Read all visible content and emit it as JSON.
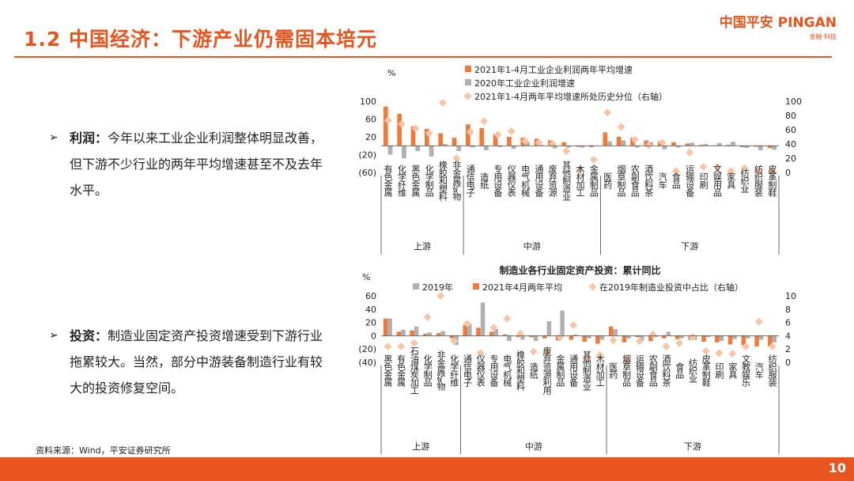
{
  "header": {
    "title": "1.2 中国经济：下游产业仍需固本培元",
    "logo_text": "中国平安 PINGAN",
    "logo_sub": "金融·科技"
  },
  "bullets": [
    {
      "mark": "➢",
      "head": "利润：",
      "text": "今年以来工业企业利润整体明显改善，但下游不少行业的两年平均增速甚至不及去年水平。"
    },
    {
      "mark": "➢",
      "head": "投资：",
      "text": "制造业固定资产投资增速受到下游行业拖累较大。当然，部分中游装备制造行业有较大的投资修复空间。"
    }
  ],
  "source": "资料来源：Wind，平安证券研究所",
  "page_number": "10",
  "colors": {
    "accent": "#e8541e",
    "orange_bar": "#f07a3a",
    "gray_bar": "#b0b0b0",
    "diamond": "#f8c4a4"
  },
  "chart_data": [
    {
      "type": "bar",
      "title": "",
      "left_unit": "%",
      "yticks_left": [
        "100",
        "60",
        "20",
        "(20)",
        "(60)"
      ],
      "yticks_right": [
        "100",
        "80",
        "60",
        "40",
        "20",
        "0"
      ],
      "ylim_left": [
        -60,
        100
      ],
      "ylim_right": [
        0,
        100
      ],
      "legend": [
        {
          "name": "2021年1-4月工业企业利润两年平均增速",
          "marker": "bar-orange"
        },
        {
          "name": "2020年工业企业利润增速",
          "marker": "bar-gray"
        },
        {
          "name": "2021年1-4月两年平均增速所处历史分位（右轴）",
          "marker": "diamond"
        }
      ],
      "categories": [
        "有色金属",
        "化学纤维",
        "黑色金属",
        "化学制品",
        "橡胶和塑料",
        "非金属矿物",
        "通信电子",
        "造纸",
        "专用设备",
        "仪器仪表",
        "电气机械",
        "通用设备",
        "废弃资源",
        "其他制造业",
        "木材加工",
        "金属制品",
        "医药",
        "烟草制品",
        "农副食品",
        "酒饮料茶",
        "汽车",
        "食品",
        "运输设备",
        "印刷",
        "文娱用品",
        "家具",
        "纺织业",
        "纺织服装",
        "皮革制鞋"
      ],
      "groups": [
        {
          "name": "上游",
          "start": 0,
          "end": 5
        },
        {
          "name": "中游",
          "start": 6,
          "end": 15
        },
        {
          "name": "下游",
          "start": 16,
          "end": 28
        }
      ],
      "series": [
        {
          "name": "2021年1-4月工业企业利润两年平均增速",
          "axis": "left",
          "values": [
            88,
            72,
            44,
            38,
            28,
            18,
            48,
            40,
            26,
            20,
            18,
            16,
            12,
            8,
            -2,
            -3,
            30,
            20,
            18,
            12,
            10,
            8,
            5,
            2,
            1,
            2,
            -3,
            -2,
            -5
          ]
        },
        {
          "name": "2020年工业企业利润增速",
          "axis": "left",
          "values": [
            -20,
            -28,
            -12,
            -24,
            4,
            -12,
            -4,
            -10,
            -3,
            -7,
            8,
            2,
            -6,
            -4,
            -4,
            0,
            10,
            12,
            -4,
            8,
            -8,
            -4,
            7,
            4,
            6,
            9,
            -5,
            -10,
            -9
          ]
        },
        {
          "name": "2021年1-4月两年平均增速所处历史分位（右轴）",
          "axis": "right",
          "values": [
            73,
            68,
            62,
            55,
            98,
            20,
            57,
            72,
            53,
            58,
            44,
            42,
            40,
            30,
            4,
            18,
            84,
            64,
            46,
            38,
            42,
            2,
            28,
            8,
            8,
            2,
            6,
            2,
            2
          ]
        }
      ]
    },
    {
      "type": "bar",
      "title": "制造业各行业固定资产投资：累计同比",
      "left_unit": "%",
      "yticks_left": [
        "60",
        "40",
        "20",
        "0",
        "(20)",
        "(40)"
      ],
      "yticks_right": [
        "10",
        "8",
        "6",
        "4",
        "2",
        "0"
      ],
      "ylim_left": [
        -40,
        60
      ],
      "ylim_right": [
        0,
        10
      ],
      "legend": [
        {
          "name": "2019年",
          "marker": "bar-gray"
        },
        {
          "name": "2021年4月两年平均",
          "marker": "bar-orange"
        },
        {
          "name": "在2019年制造业投资中占比（右轴）",
          "marker": "diamond"
        }
      ],
      "categories": [
        "黑色金属",
        "有色金属",
        "石油煤炭加工",
        "化学制品",
        "非金属矿物",
        "化学纤维",
        "通信电子",
        "仪器仪表",
        "专用设备",
        "电气机械",
        "橡胶和塑料",
        "造纸",
        "废弃资源利用",
        "金属制品",
        "通用设备",
        "其他制造业",
        "木材加工",
        "医药",
        "烟草制品",
        "运输设备",
        "农副食品",
        "酒饮料茶",
        "食品",
        "纺织业",
        "皮革制鞋",
        "印刷",
        "家具",
        "文教娱乐",
        "汽车",
        "纺织服装"
      ],
      "groups": [
        {
          "name": "上游",
          "start": 0,
          "end": 5
        },
        {
          "name": "中游",
          "start": 6,
          "end": 16
        },
        {
          "name": "下游",
          "start": 17,
          "end": 29
        }
      ],
      "series": [
        {
          "name": "2019年",
          "axis": "left",
          "values": [
            26,
            9,
            14,
            5,
            7,
            -14,
            18,
            50,
            10,
            -8,
            -6,
            -8,
            22,
            38,
            2,
            -4,
            -6,
            10,
            -4,
            -8,
            -2,
            6,
            -4,
            -6,
            -2,
            -8,
            -5,
            -4,
            -6,
            -10
          ]
        },
        {
          "name": "2021年4月两年平均",
          "axis": "left",
          "values": [
            26,
            6,
            8,
            3,
            4,
            -4,
            16,
            12,
            6,
            2,
            -2,
            -2,
            -4,
            -7,
            -6,
            -9,
            -12,
            14,
            -10,
            -2,
            -8,
            -4,
            -5,
            -6,
            -9,
            -10,
            -13,
            -14,
            -16,
            -16
          ]
        },
        {
          "name": "在2019年制造业投资中占比（右轴）",
          "axis": "right",
          "values": [
            2.4,
            2.4,
            2.9,
            6.8,
            10,
            3.2,
            5.8,
            1.4,
            5.2,
            6.6,
            4.3,
            1.6,
            1.6,
            3.8,
            5.6,
            0.6,
            1.1,
            3.3,
            0.2,
            3.2,
            4.2,
            2.4,
            2.9,
            3.8,
            1.7,
            1.4,
            1.3,
            2.4,
            6.1,
            2.4
          ]
        }
      ]
    }
  ]
}
